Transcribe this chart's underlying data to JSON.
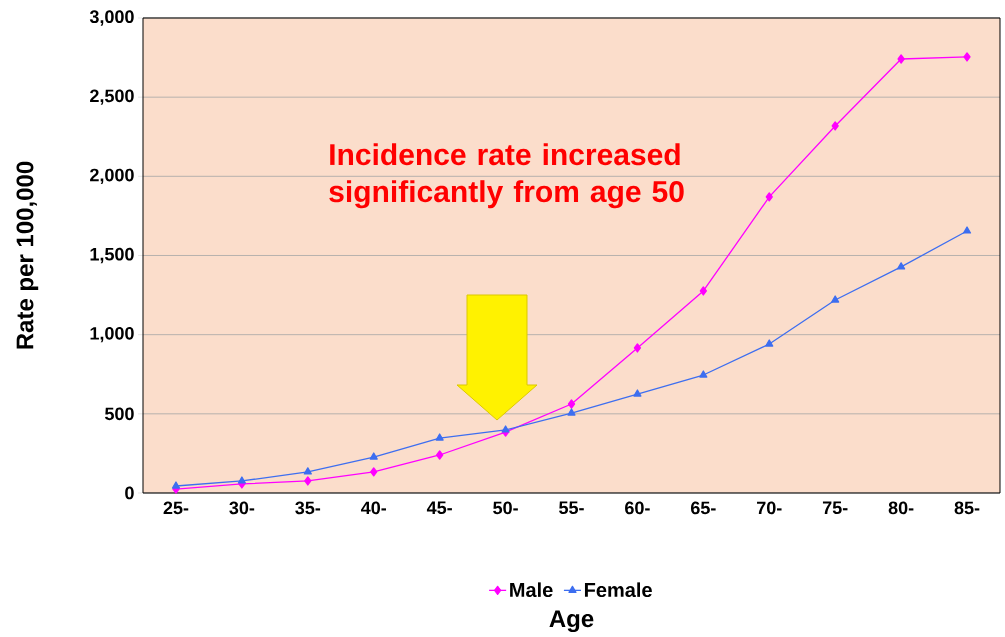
{
  "chart_data": {
    "type": "line",
    "xlabel": "Age",
    "ylabel": "Rate per 100,000",
    "categories": [
      "25-",
      "30-",
      "35-",
      "40-",
      "45-",
      "50-",
      "55-",
      "60-",
      "65-",
      "70-",
      "75-",
      "80-",
      "85-"
    ],
    "series": [
      {
        "name": "Male",
        "color": "#ff00ff",
        "marker": "diamond",
        "values": [
          25,
          57,
          76,
          133,
          240,
          385,
          562,
          916,
          1276,
          1870,
          2318,
          2741,
          2754
        ]
      },
      {
        "name": "Female",
        "color": "#3d6ef0",
        "marker": "triangle",
        "values": [
          44,
          76,
          133,
          227,
          347,
          398,
          505,
          625,
          745,
          941,
          1219,
          1428,
          1655
        ]
      }
    ],
    "ylim": [
      0,
      3000
    ],
    "yticks": [
      0,
      500,
      {
        "value": 1000,
        "label": "1,000"
      },
      {
        "value": 1500,
        "label": "1,500"
      },
      {
        "value": 2000,
        "label": "2,000"
      },
      {
        "value": 2500,
        "label": "2,500"
      },
      {
        "value": 3000,
        "label": "3,000"
      }
    ],
    "grid": "y",
    "legend": "bottom",
    "annotations": [
      "Incidence rate increased significantly from age 50"
    ]
  }
}
